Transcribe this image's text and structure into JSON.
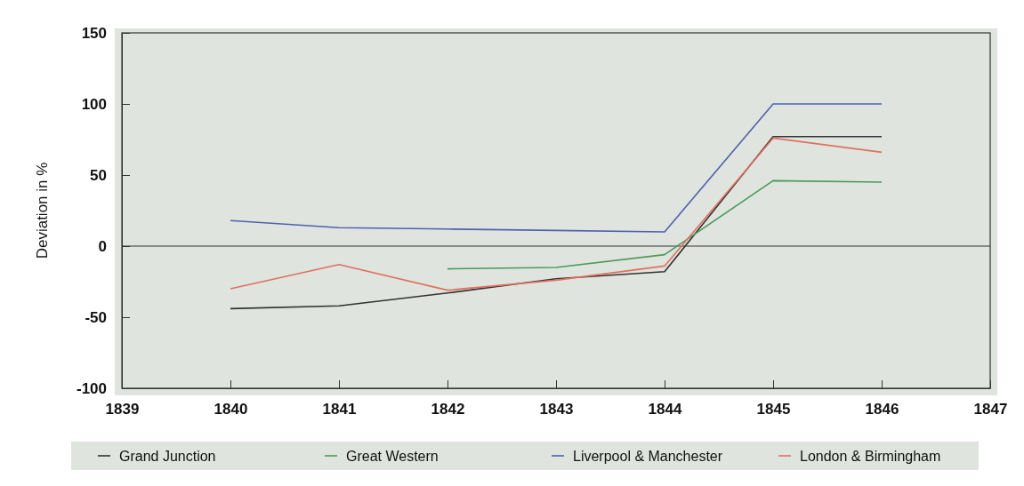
{
  "chart_data": {
    "type": "line",
    "ylabel": "Deviation in %",
    "x": [
      1840,
      1841,
      1842,
      1843,
      1844,
      1845,
      1846
    ],
    "xlim": [
      1839,
      1847
    ],
    "xticks": [
      1839,
      1840,
      1841,
      1842,
      1843,
      1844,
      1845,
      1846,
      1847
    ],
    "ylim": [
      -100,
      150
    ],
    "yticks": [
      -100,
      -50,
      0,
      50,
      100,
      150
    ],
    "series": [
      {
        "name": "Grand Junction",
        "color": "#333333",
        "values": [
          -44,
          -42,
          -33,
          -23,
          -18,
          77,
          77
        ]
      },
      {
        "name": "Great Western",
        "color": "#4a9a5a",
        "values": [
          null,
          null,
          -16,
          -15,
          -6,
          46,
          45
        ]
      },
      {
        "name": "Liverpool & Manchester",
        "color": "#5060b0",
        "values": [
          18,
          13,
          12,
          11,
          10,
          100,
          100
        ]
      },
      {
        "name": "London & Birmingham",
        "color": "#e07060",
        "values": [
          -30,
          -13,
          -31,
          -24,
          -14,
          76,
          66
        ]
      }
    ],
    "ref_lines": [
      {
        "axis": "y",
        "value": 0,
        "color": "#333333"
      }
    ],
    "legend": "bottom",
    "grid": false,
    "marker": "none",
    "line_style": "solid"
  }
}
